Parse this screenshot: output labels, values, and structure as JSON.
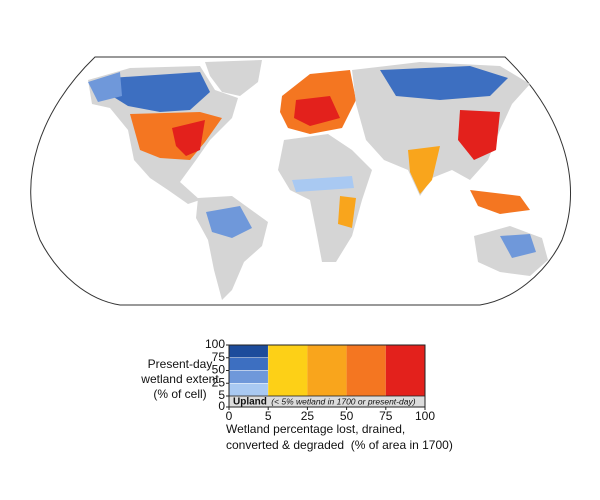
{
  "map": {
    "legend": {
      "y_label": [
        "Present-day",
        "wetland extent",
        "(% of cell)"
      ],
      "yticks": [
        0,
        5,
        25,
        50,
        75,
        100
      ],
      "xticks": [
        0,
        5,
        25,
        50,
        75,
        100
      ],
      "x_label": [
        "Wetland percentage lost, drained,",
        "converted & degraded  (% of area in 1700)"
      ],
      "upland_label": "Upland",
      "upland_note": "(< 5% wetland in 1700 or present-day)",
      "extent_colors": [
        "#a9c9f2",
        "#6f98da",
        "#3d6fc1",
        "#1d4c9b"
      ],
      "loss_colors": [
        "#fdd017",
        "#f9a51c",
        "#f47621",
        "#e3211c"
      ],
      "upland_color": "#dcdcdc"
    }
  }
}
